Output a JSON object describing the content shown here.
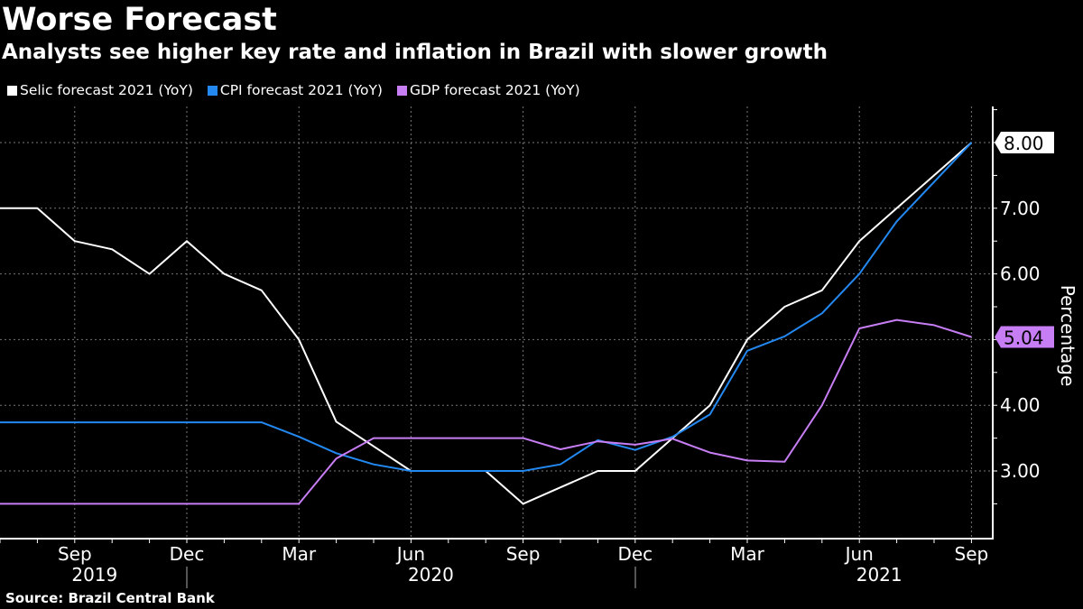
{
  "title": "Worse Forecast",
  "subtitle": "Analysts see higher key rate and inflation in Brazil with slower growth",
  "source": "Source:  Brazil Central Bank",
  "chart_data": {
    "type": "line",
    "title": "Worse Forecast",
    "ylabel": "Percentage",
    "ylim": [
      2,
      8.5
    ],
    "yticks": [
      "3.00",
      "4.00",
      "6.00",
      "7.00"
    ],
    "grid": true,
    "legend": "top-left",
    "x": [
      "2019-07",
      "2019-08",
      "2019-09",
      "2019-10",
      "2019-11",
      "2019-12",
      "2020-01",
      "2020-02",
      "2020-03",
      "2020-04",
      "2020-05",
      "2020-06",
      "2020-07",
      "2020-08",
      "2020-09",
      "2020-10",
      "2020-11",
      "2020-12",
      "2021-01",
      "2021-02",
      "2021-03",
      "2021-04",
      "2021-05",
      "2021-06",
      "2021-07",
      "2021-08",
      "2021-09"
    ],
    "xtick_labels": [
      "Sep",
      "Dec",
      "Mar",
      "Jun",
      "Sep",
      "Dec",
      "Mar",
      "Jun",
      "Sep"
    ],
    "year_labels": [
      "2019",
      "2020",
      "2021"
    ],
    "series": [
      {
        "name": "Selic forecast 2021 (YoY)",
        "color": "#ffffff",
        "values": [
          7.0,
          7.0,
          6.5,
          6.375,
          6.0,
          6.5,
          6.0,
          5.75,
          5.0,
          3.75,
          3.375,
          3.0,
          3.0,
          3.0,
          2.5,
          2.75,
          3.0,
          3.0,
          3.5,
          4.0,
          5.0,
          5.5,
          5.75,
          6.5,
          7.0,
          7.5,
          8.0
        ],
        "last_label": "8.00"
      },
      {
        "name": "CPI forecast 2021 (YoY)",
        "color": "#2388f0",
        "values": [
          3.74,
          3.74,
          3.74,
          3.74,
          3.74,
          3.74,
          3.74,
          3.74,
          3.52,
          3.27,
          3.1,
          3.0,
          3.0,
          3.0,
          3.0,
          3.1,
          3.47,
          3.32,
          3.52,
          3.86,
          4.83,
          5.05,
          5.4,
          6.0,
          6.8,
          7.4,
          8.0
        ]
      },
      {
        "name": "GDP forecast 2021 (YoY)",
        "color": "#c77df3",
        "values": [
          2.5,
          2.5,
          2.5,
          2.5,
          2.5,
          2.5,
          2.5,
          2.5,
          2.5,
          3.19,
          3.5,
          3.5,
          3.5,
          3.5,
          3.5,
          3.33,
          3.45,
          3.4,
          3.49,
          3.28,
          3.16,
          3.14,
          4.0,
          5.17,
          5.3,
          5.22,
          5.04
        ],
        "last_label": "5.04"
      }
    ]
  }
}
